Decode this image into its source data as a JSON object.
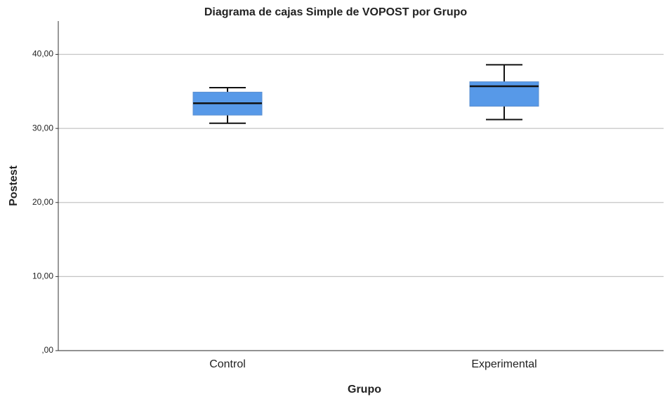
{
  "chart_data": {
    "type": "box",
    "title": "Diagrama de cajas Simple de VOPOST por Grupo",
    "x_label": "Grupo",
    "y_label": "Postest",
    "categories": [
      "Control",
      "Experimental"
    ],
    "boxes": [
      {
        "min": 30.7,
        "q1": 31.8,
        "median": 33.4,
        "q3": 34.9,
        "max": 35.5
      },
      {
        "min": 31.2,
        "q1": 33.0,
        "median": 35.7,
        "q3": 36.3,
        "max": 38.6
      }
    ],
    "color": "#5799e8",
    "ylim": [
      0,
      44.5
    ],
    "yticks": [
      {
        "value": 0,
        "label": ",00"
      },
      {
        "value": 10,
        "label": "10,00"
      },
      {
        "value": 20,
        "label": "20,00"
      },
      {
        "value": 30,
        "label": "30,00"
      },
      {
        "value": 40,
        "label": "40,00"
      }
    ],
    "grid": true
  }
}
